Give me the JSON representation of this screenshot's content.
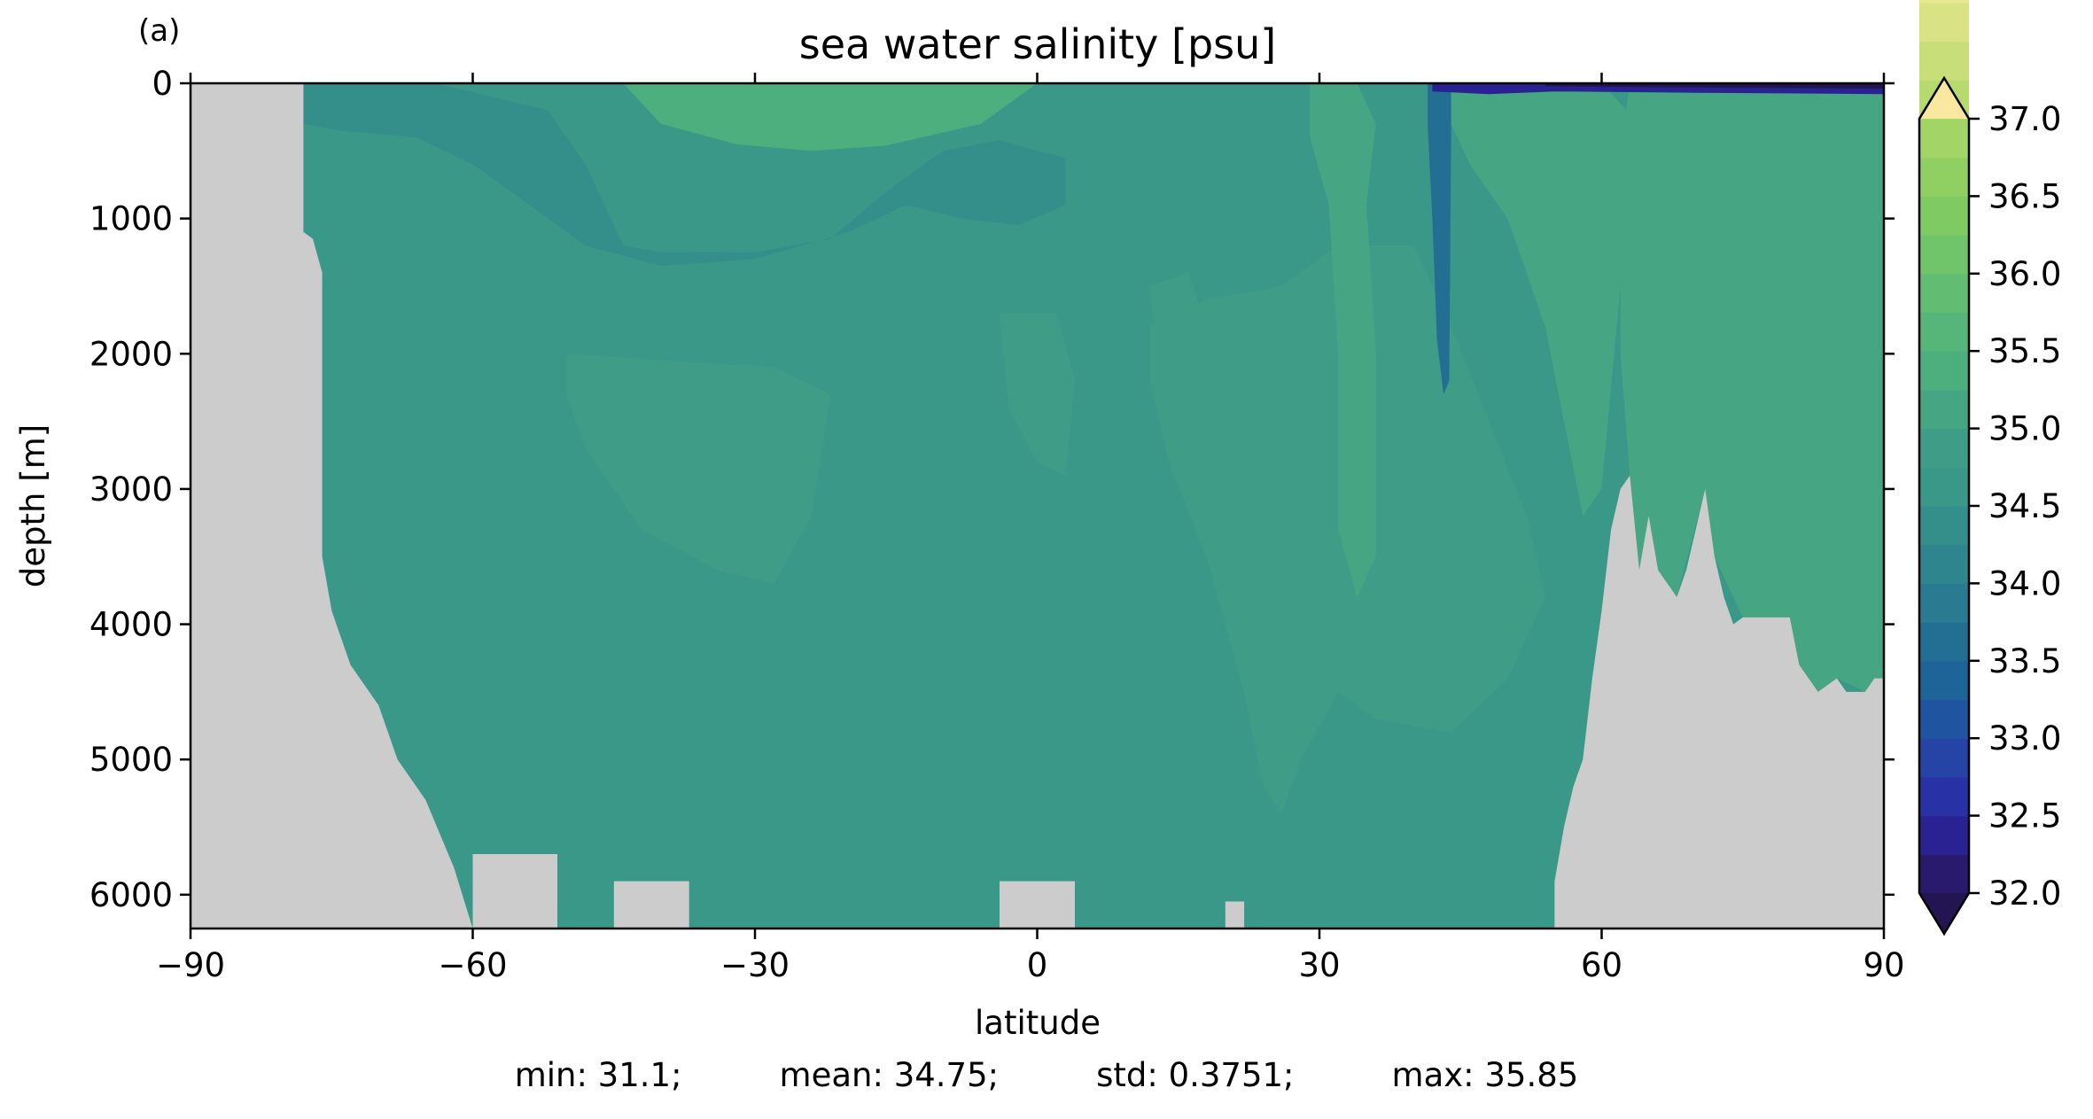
{
  "panel_label": "(a)",
  "chart_data": {
    "type": "heatmap",
    "title": "sea water salinity [psu]",
    "xlabel": "latitude",
    "ylabel": "depth [m]",
    "xlim": [
      -90,
      90
    ],
    "ylim": [
      6250,
      0
    ],
    "x_ticks": [
      -90,
      -60,
      -30,
      0,
      30,
      60,
      90
    ],
    "x_tick_labels": [
      "−90",
      "−60",
      "−30",
      "0",
      "30",
      "60",
      "90"
    ],
    "y_ticks": [
      0,
      1000,
      2000,
      3000,
      4000,
      5000,
      6000
    ],
    "y_tick_labels": [
      "0",
      "1000",
      "2000",
      "3000",
      "4000",
      "5000",
      "6000"
    ],
    "colorbar": {
      "min": 32.0,
      "max": 37.0,
      "step": 0.25,
      "extend": "both",
      "tick_values": [
        32.0,
        32.5,
        33.0,
        33.5,
        34.0,
        34.5,
        35.0,
        35.5,
        36.0,
        36.5,
        37.0
      ],
      "tick_labels": [
        "32.0",
        "32.5",
        "33.0",
        "33.5",
        "34.0",
        "34.5",
        "35.0",
        "35.5",
        "36.0",
        "36.5",
        "37.0"
      ],
      "colors": [
        "#2a1a6e",
        "#2a2292",
        "#2832a4",
        "#2643a6",
        "#1f55a0",
        "#1f6499",
        "#236f94",
        "#2a7b91",
        "#2f858e",
        "#348f8b",
        "#3a9888",
        "#3f9d87",
        "#46a683",
        "#4dae7e",
        "#56b578",
        "#62bc72",
        "#70c46a",
        "#7fca63",
        "#90cf62",
        "#a3d566",
        "#b6da6e",
        "#c8de79",
        "#d9e384",
        "#e8e890",
        "#f5eda0"
      ],
      "under_color": "#231551",
      "over_color": "#fbe8a0"
    },
    "land_color": "#cccccc",
    "background_value": 34.6,
    "land_mask": [
      [
        -90,
        0
      ],
      [
        -78,
        0
      ],
      [
        -78,
        1100
      ],
      [
        -77,
        1150
      ],
      [
        -76,
        1400
      ],
      [
        -76,
        3500
      ],
      [
        -75,
        3900
      ],
      [
        -73,
        4300
      ],
      [
        -70,
        4600
      ],
      [
        -68,
        5000
      ],
      [
        -65,
        5300
      ],
      [
        -62,
        5800
      ],
      [
        -60,
        6250
      ],
      [
        -90,
        6250
      ]
    ],
    "seafloor_bumps": [
      {
        "x": [
          -60,
          -51
        ],
        "depth": 5700
      },
      {
        "x": [
          -45,
          -37
        ],
        "depth": 5900
      },
      {
        "x": [
          -4,
          4
        ],
        "depth": 5900
      },
      {
        "x": [
          20,
          22
        ],
        "depth": 6050
      }
    ],
    "north_land": [
      [
        55,
        6250
      ],
      [
        55,
        5900
      ],
      [
        56,
        5500
      ],
      [
        57,
        5200
      ],
      [
        58,
        5000
      ],
      [
        59,
        4400
      ],
      [
        60,
        3900
      ],
      [
        61,
        3300
      ],
      [
        62,
        3000
      ],
      [
        63,
        2900
      ],
      [
        64,
        3600
      ],
      [
        65,
        3200
      ],
      [
        66,
        3600
      ],
      [
        67,
        3700
      ],
      [
        68,
        3800
      ],
      [
        69,
        3600
      ],
      [
        70,
        3300
      ],
      [
        71,
        3000
      ],
      [
        72,
        3500
      ],
      [
        73,
        3800
      ],
      [
        74,
        4000
      ],
      [
        75,
        3950
      ],
      [
        80,
        3950
      ],
      [
        81,
        4300
      ],
      [
        83,
        4500
      ],
      [
        85,
        4400
      ],
      [
        86,
        4500
      ],
      [
        88,
        4500
      ],
      [
        89,
        4400
      ],
      [
        90,
        4400
      ],
      [
        90,
        6250
      ]
    ],
    "features": [
      {
        "name": "subtropical-south-upper",
        "value": 35.9,
        "polygon": [
          [
            -36,
            0
          ],
          [
            -32,
            150
          ],
          [
            -26,
            220
          ],
          [
            -20,
            200
          ],
          [
            -14,
            160
          ],
          [
            -8,
            60
          ],
          [
            -6,
            0
          ]
        ]
      },
      {
        "name": "subtropical-south-ring",
        "value": 35.3,
        "polygon": [
          [
            -44,
            0
          ],
          [
            -40,
            300
          ],
          [
            -32,
            450
          ],
          [
            -24,
            500
          ],
          [
            -16,
            460
          ],
          [
            -6,
            300
          ],
          [
            -2,
            100
          ],
          [
            0,
            0
          ]
        ]
      },
      {
        "name": "aaiw-south",
        "value": 34.3,
        "polygon": [
          [
            -78,
            0
          ],
          [
            -64,
            0
          ],
          [
            -52,
            200
          ],
          [
            -48,
            600
          ],
          [
            -44,
            1200
          ],
          [
            -40,
            1250
          ],
          [
            -30,
            1250
          ],
          [
            -22,
            1150
          ],
          [
            -16,
            800
          ],
          [
            -10,
            500
          ],
          [
            -4,
            420
          ],
          [
            0,
            500
          ],
          [
            3,
            550
          ],
          [
            3,
            900
          ],
          [
            -2,
            1050
          ],
          [
            -8,
            1000
          ],
          [
            -14,
            900
          ],
          [
            -20,
            1100
          ],
          [
            -30,
            1300
          ],
          [
            -40,
            1350
          ],
          [
            -48,
            1200
          ],
          [
            -54,
            900
          ],
          [
            -60,
            600
          ],
          [
            -66,
            400
          ],
          [
            -74,
            350
          ],
          [
            -78,
            300
          ]
        ]
      },
      {
        "name": "nadw-tongue-south",
        "value": 34.9,
        "polygon": [
          [
            -50,
            2000
          ],
          [
            -40,
            2050
          ],
          [
            -28,
            2100
          ],
          [
            -22,
            2300
          ],
          [
            -24,
            3200
          ],
          [
            -28,
            3700
          ],
          [
            -34,
            3600
          ],
          [
            -42,
            3300
          ],
          [
            -48,
            2700
          ],
          [
            -50,
            2300
          ]
        ]
      },
      {
        "name": "nadw-tongue-north",
        "value": 34.9,
        "polygon": [
          [
            12,
            1800
          ],
          [
            18,
            1600
          ],
          [
            26,
            1500
          ],
          [
            32,
            1200
          ],
          [
            40,
            1200
          ],
          [
            44,
            1800
          ],
          [
            48,
            2500
          ],
          [
            52,
            3200
          ],
          [
            54,
            3800
          ],
          [
            50,
            4400
          ],
          [
            44,
            4800
          ],
          [
            36,
            4700
          ],
          [
            32,
            4500
          ],
          [
            28,
            5000
          ],
          [
            26,
            5400
          ],
          [
            24,
            5200
          ],
          [
            22,
            4500
          ],
          [
            18,
            3500
          ],
          [
            14,
            2800
          ],
          [
            12,
            2200
          ]
        ]
      },
      {
        "name": "mediterranean-outflow",
        "value": 35.2,
        "polygon": [
          [
            29,
            0
          ],
          [
            34,
            0
          ],
          [
            36,
            300
          ],
          [
            35,
            900
          ],
          [
            36,
            2000
          ],
          [
            36,
            3500
          ],
          [
            34,
            3800
          ],
          [
            32,
            3300
          ],
          [
            32,
            2000
          ],
          [
            31,
            900
          ],
          [
            29,
            400
          ]
        ]
      },
      {
        "name": "north-atlantic-surface",
        "value": 35.1,
        "polygon": [
          [
            44,
            0
          ],
          [
            60,
            0
          ],
          [
            64,
            300
          ],
          [
            62,
            1500
          ],
          [
            60,
            3000
          ],
          [
            58,
            3200
          ],
          [
            56,
            2500
          ],
          [
            54,
            1800
          ],
          [
            50,
            1000
          ],
          [
            46,
            600
          ],
          [
            44,
            300
          ]
        ]
      },
      {
        "name": "nordic-seas",
        "value": 35.0,
        "polygon": [
          [
            63,
            0
          ],
          [
            90,
            0
          ],
          [
            90,
            4400
          ],
          [
            88,
            4500
          ],
          [
            85,
            4400
          ],
          [
            83,
            4500
          ],
          [
            81,
            4300
          ],
          [
            80,
            3950
          ],
          [
            75,
            3950
          ],
          [
            72,
            3500
          ],
          [
            71,
            3000
          ],
          [
            68,
            3800
          ],
          [
            66,
            3600
          ],
          [
            64,
            3600
          ],
          [
            63,
            2900
          ],
          [
            62,
            2000
          ],
          [
            62,
            500
          ]
        ]
      },
      {
        "name": "north-pacific-low",
        "value": 33.6,
        "polygon": [
          [
            41.5,
            0
          ],
          [
            44,
            0
          ],
          [
            44,
            400
          ],
          [
            43.8,
            2200
          ],
          [
            43.2,
            2300
          ],
          [
            42.5,
            1900
          ],
          [
            42,
            1000
          ],
          [
            41.5,
            300
          ]
        ]
      },
      {
        "name": "arctic-fresh-surface",
        "value": 32.3,
        "polygon": [
          [
            42,
            0
          ],
          [
            90,
            0
          ],
          [
            90,
            80
          ],
          [
            70,
            70
          ],
          [
            55,
            60
          ],
          [
            48,
            80
          ],
          [
            42,
            60
          ]
        ]
      },
      {
        "name": "arctic-very-fresh",
        "value": 31.6,
        "polygon": [
          [
            54,
            0
          ],
          [
            90,
            0
          ],
          [
            90,
            40
          ],
          [
            80,
            35
          ],
          [
            68,
            30
          ],
          [
            58,
            25
          ],
          [
            54,
            20
          ]
        ]
      },
      {
        "name": "equatorial-east-patch",
        "value": 34.9,
        "polygon": [
          [
            -4,
            1700
          ],
          [
            2,
            1700
          ],
          [
            4,
            2200
          ],
          [
            3,
            2900
          ],
          [
            0,
            2800
          ],
          [
            -3,
            2400
          ]
        ]
      },
      {
        "name": "tropic-north-patch",
        "value": 34.9,
        "polygon": [
          [
            12,
            1500
          ],
          [
            16,
            1400
          ],
          [
            18,
            1800
          ],
          [
            17,
            2300
          ],
          [
            13,
            2300
          ]
        ]
      }
    ],
    "x_gridlines": false,
    "y_gridlines": false
  },
  "stats": {
    "min": "min: 31.1;",
    "mean": "mean: 34.75;",
    "std": "std: 0.3751;",
    "max": "max: 35.85"
  }
}
